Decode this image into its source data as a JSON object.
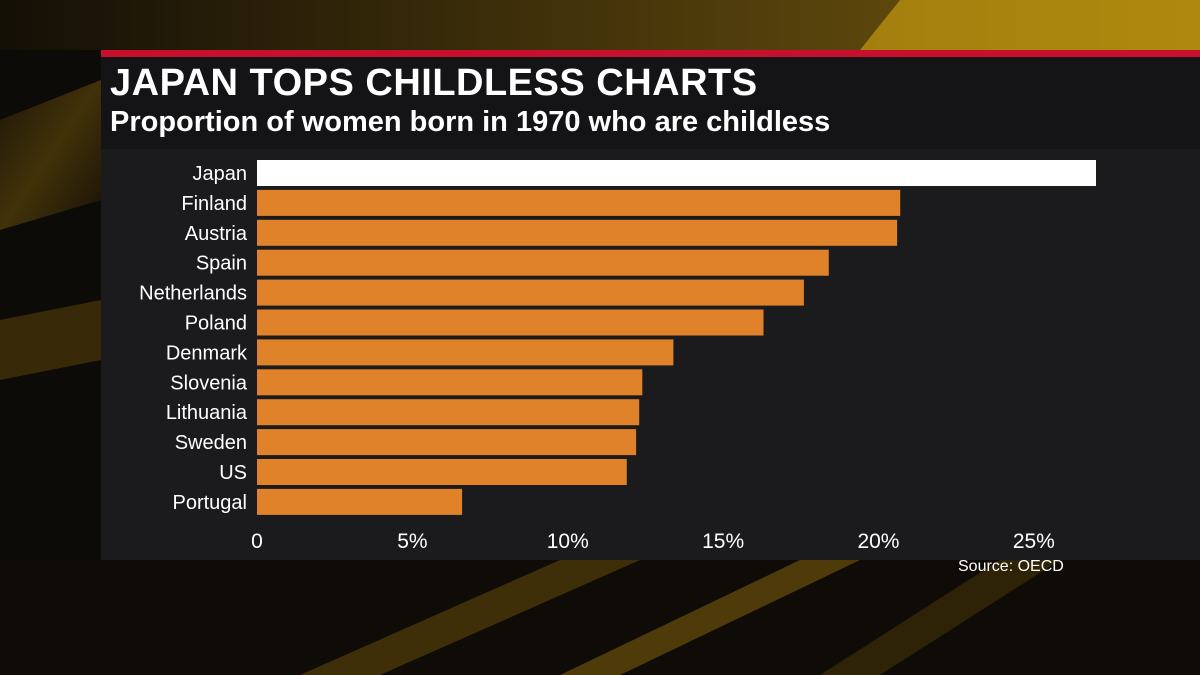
{
  "title": "JAPAN TOPS CHILDLESS CHARTS",
  "subtitle": "Proportion of women born in 1970 who are childless",
  "source": "Source: OECD",
  "colors": {
    "highlight_bar": "#ffffff",
    "bar": "#e0822a",
    "accent_line": "#c8102e",
    "panel": "#1b1b1d",
    "text": "#ffffff"
  },
  "chart_data": {
    "type": "bar",
    "orientation": "horizontal",
    "categories": [
      "Japan",
      "Finland",
      "Austria",
      "Spain",
      "Netherlands",
      "Poland",
      "Denmark",
      "Slovenia",
      "Lithuania",
      "Sweden",
      "US",
      "Portugal"
    ],
    "values": [
      27.0,
      20.7,
      20.6,
      18.4,
      17.6,
      16.3,
      13.4,
      12.4,
      12.3,
      12.2,
      11.9,
      6.6
    ],
    "highlight": "Japan",
    "xlim": [
      0,
      27
    ],
    "xticks": [
      0,
      5,
      10,
      15,
      20,
      25
    ],
    "xtick_labels": [
      "0",
      "5%",
      "10%",
      "15%",
      "20%",
      "25%"
    ],
    "xlabel": "",
    "ylabel": "",
    "grid": false,
    "legend": "none"
  }
}
